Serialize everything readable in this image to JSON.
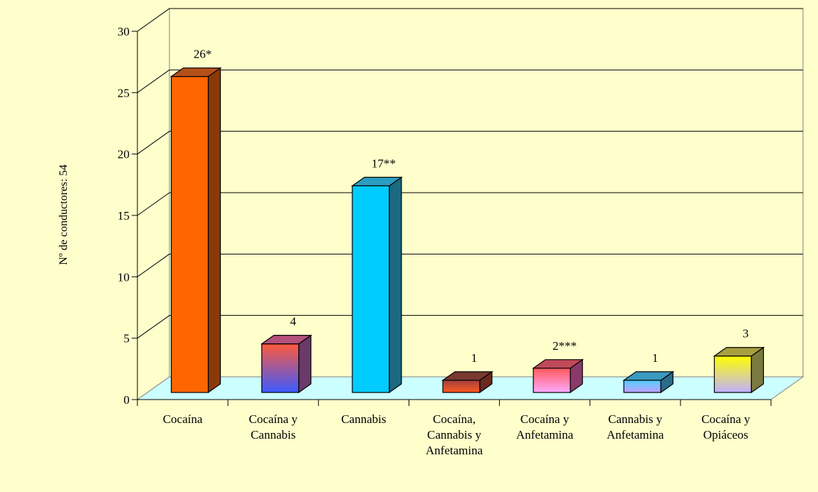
{
  "chart_data": {
    "type": "bar",
    "title": "",
    "xlabel": "",
    "ylabel": "Nº de conductores: 54",
    "ylim": [
      0,
      30
    ],
    "yticks": [
      0,
      5,
      10,
      15,
      20,
      25,
      30
    ],
    "grid": true,
    "categories": [
      [
        "Cocaína"
      ],
      [
        "Cocaína y",
        "Cannabis"
      ],
      [
        "Cannabis"
      ],
      [
        "Cocaína,",
        "Cannabis y",
        "Anfetamina"
      ],
      [
        "Cocaína y",
        "Anfetamina"
      ],
      [
        "Cannabis y",
        "Anfetamina"
      ],
      [
        "Cocaína y",
        "Opiáceos"
      ]
    ],
    "values": [
      26,
      4,
      17,
      1,
      2,
      1,
      3
    ],
    "data_labels": [
      "26*",
      "4",
      "17**",
      "1",
      "2***",
      "1",
      "3"
    ],
    "colors": {
      "background": "#ffffcc",
      "floor": "#ccffff",
      "bars": [
        {
          "top": "#ff6600",
          "bottom": "#ff6600",
          "side": "#8a3a08",
          "cap": "#b4501a"
        },
        {
          "top": "#ff5a3c",
          "bottom": "#3c5aff",
          "side": "#6a3a6a",
          "cap": "#b4507a"
        },
        {
          "top": "#00ccff",
          "bottom": "#00ccff",
          "side": "#1a6a80",
          "cap": "#2a9ec0"
        },
        {
          "top": "#a04040",
          "bottom": "#ff5a1e",
          "side": "#6a2a20",
          "cap": "#7a3a30"
        },
        {
          "top": "#ff5a5a",
          "bottom": "#ffaaff",
          "side": "#8a3a6a",
          "cap": "#c04a5a"
        },
        {
          "top": "#50d0ff",
          "bottom": "#c0a0ff",
          "side": "#2a6a8a",
          "cap": "#3a9ac0"
        },
        {
          "top": "#ffff00",
          "bottom": "#c0b0ff",
          "side": "#7a7a40",
          "cap": "#a8a040"
        }
      ]
    }
  }
}
